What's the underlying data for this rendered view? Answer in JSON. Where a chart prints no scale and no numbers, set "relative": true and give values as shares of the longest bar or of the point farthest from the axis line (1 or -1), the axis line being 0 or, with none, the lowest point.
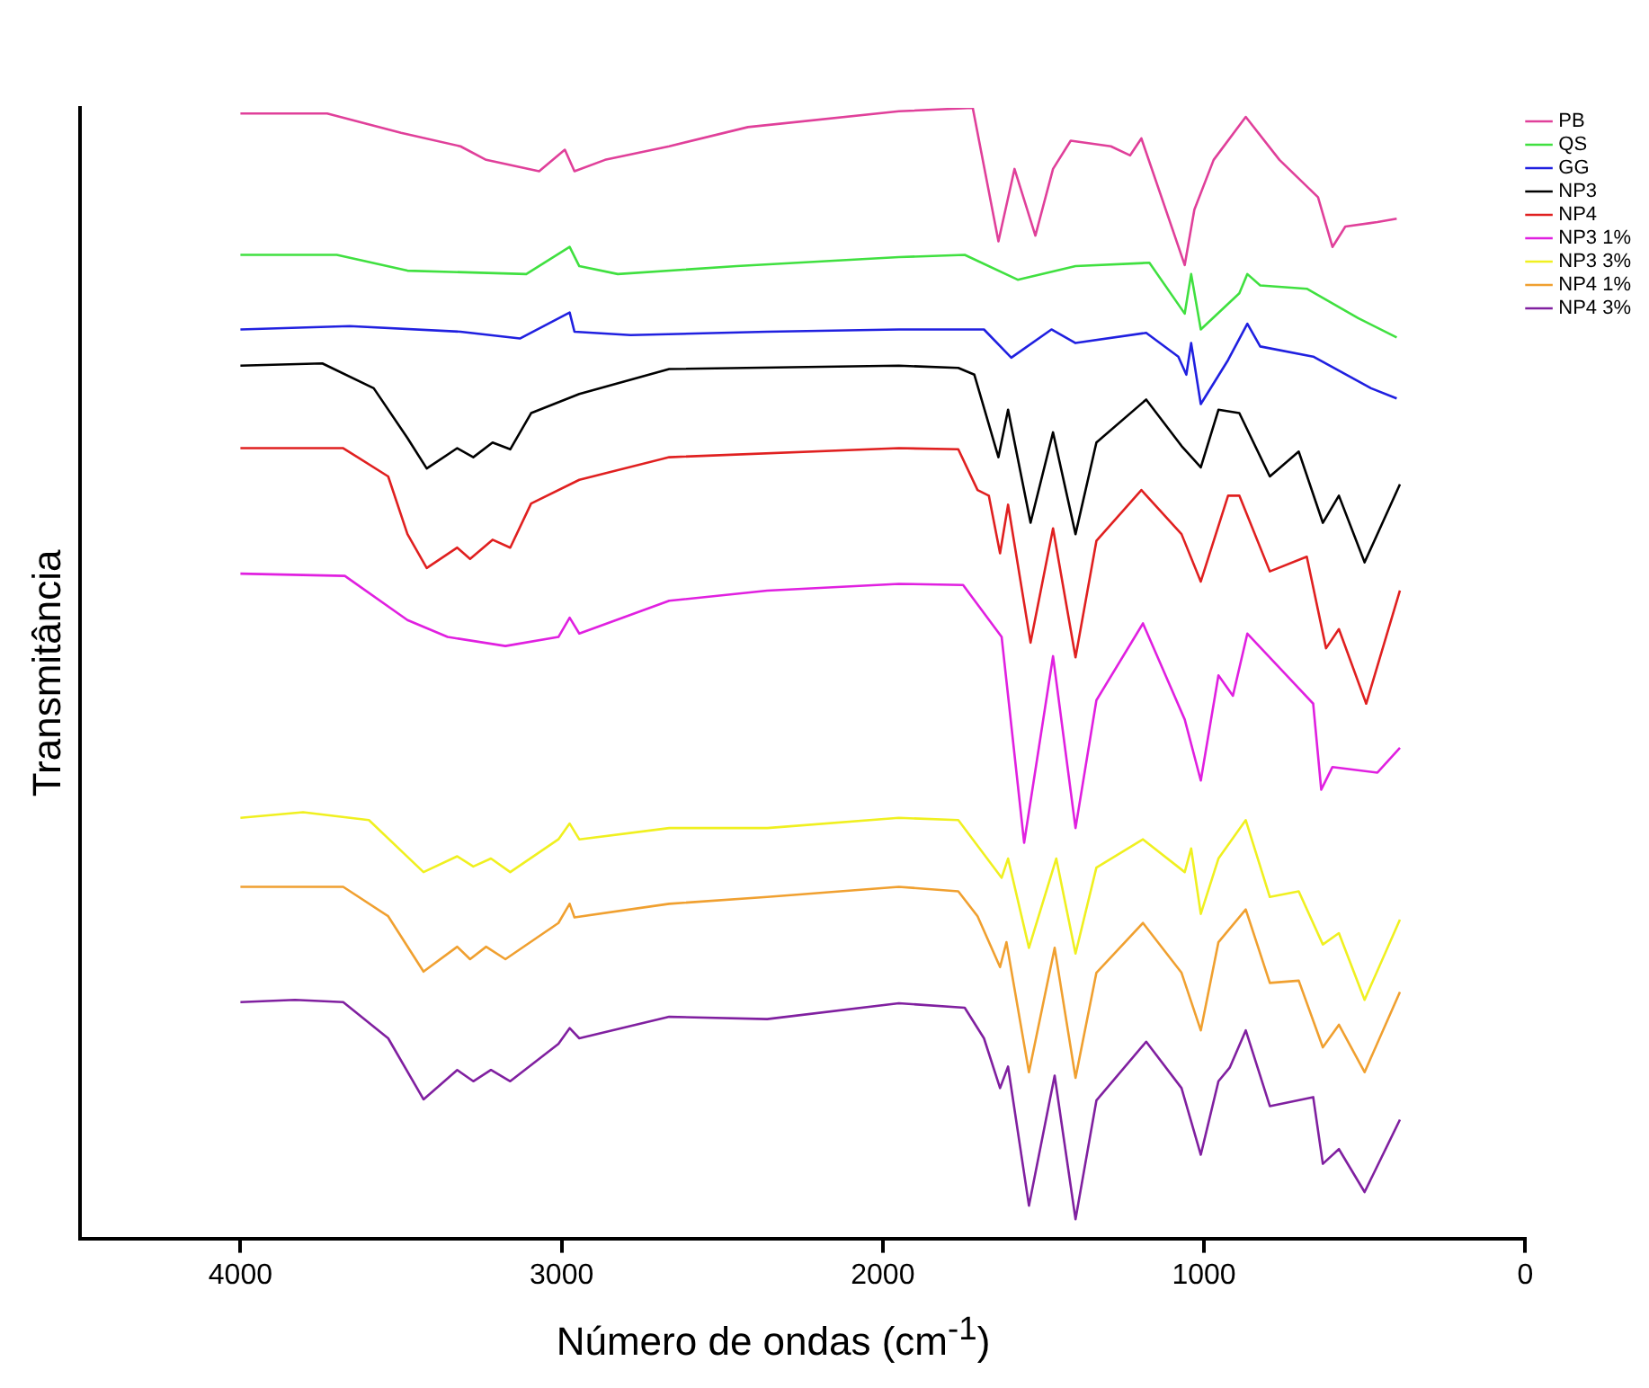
{
  "chart_data": {
    "type": "line",
    "xlabel": "Número de ondas (cm$^{-1}$)",
    "ylabel": "Transmitância",
    "relative": true,
    "xlim": [
      4500,
      0
    ],
    "xticks": [
      4000,
      3000,
      2000,
      1000,
      0
    ],
    "grid": false,
    "legend": "top right",
    "marker": "none",
    "line_style": "solid",
    "series": [
      {
        "name": "PB",
        "color": "#e0409a",
        "x": [
          4000,
          3730,
          3500,
          3315,
          3235,
          3070,
          2990,
          2960,
          2865,
          2665,
          2420,
          1950,
          1720,
          1640,
          1590,
          1525,
          1470,
          1415,
          1290,
          1230,
          1195,
          1060,
          1030,
          970,
          870,
          765,
          645,
          600,
          560,
          460,
          400
        ],
        "values": [
          0.995,
          0.995,
          0.978,
          0.966,
          0.954,
          0.944,
          0.963,
          0.944,
          0.954,
          0.966,
          0.983,
          0.997,
          1.0,
          0.882,
          0.946,
          0.887,
          0.946,
          0.971,
          0.966,
          0.958,
          0.973,
          0.861,
          0.91,
          0.954,
          0.992,
          0.954,
          0.921,
          0.877,
          0.895,
          0.899,
          0.902
        ]
      },
      {
        "name": "QS",
        "color": "#40e040",
        "x": [
          4000,
          3700,
          3480,
          3110,
          2975,
          2945,
          2825,
          2455,
          1950,
          1745,
          1580,
          1400,
          1170,
          1060,
          1040,
          1010,
          890,
          865,
          825,
          680,
          520,
          400
        ],
        "values": [
          0.87,
          0.87,
          0.856,
          0.853,
          0.877,
          0.86,
          0.853,
          0.86,
          0.868,
          0.87,
          0.848,
          0.86,
          0.863,
          0.818,
          0.853,
          0.804,
          0.836,
          0.853,
          0.843,
          0.84,
          0.814,
          0.797
        ]
      },
      {
        "name": "GG",
        "color": "#2020e0",
        "x": [
          4000,
          3660,
          3315,
          3130,
          2975,
          2960,
          2785,
          2360,
          1950,
          1685,
          1600,
          1475,
          1400,
          1180,
          1080,
          1055,
          1040,
          1010,
          925,
          865,
          825,
          660,
          480,
          400
        ],
        "values": [
          0.804,
          0.807,
          0.802,
          0.796,
          0.819,
          0.802,
          0.799,
          0.802,
          0.804,
          0.804,
          0.779,
          0.804,
          0.792,
          0.801,
          0.78,
          0.764,
          0.792,
          0.738,
          0.777,
          0.809,
          0.789,
          0.78,
          0.752,
          0.743
        ]
      },
      {
        "name": "NP3",
        "color": "#000000",
        "x": [
          4000,
          3745,
          3585,
          3480,
          3420,
          3325,
          3275,
          3215,
          3160,
          3095,
          2945,
          2665,
          1950,
          1765,
          1715,
          1640,
          1610,
          1540,
          1470,
          1400,
          1335,
          1180,
          1070,
          1010,
          955,
          890,
          795,
          705,
          630,
          580,
          500,
          390
        ],
        "values": [
          0.772,
          0.774,
          0.752,
          0.708,
          0.681,
          0.699,
          0.691,
          0.704,
          0.698,
          0.73,
          0.747,
          0.769,
          0.772,
          0.77,
          0.764,
          0.691,
          0.733,
          0.633,
          0.713,
          0.623,
          0.704,
          0.742,
          0.701,
          0.682,
          0.733,
          0.73,
          0.674,
          0.696,
          0.633,
          0.657,
          0.598,
          0.667
        ]
      },
      {
        "name": "NP4",
        "color": "#e02020",
        "x": [
          4000,
          3680,
          3540,
          3480,
          3420,
          3325,
          3285,
          3215,
          3160,
          3095,
          2945,
          2665,
          1950,
          1765,
          1705,
          1670,
          1635,
          1610,
          1540,
          1470,
          1400,
          1335,
          1195,
          1070,
          1010,
          925,
          890,
          795,
          680,
          620,
          580,
          495,
          390
        ],
        "values": [
          0.699,
          0.699,
          0.674,
          0.623,
          0.593,
          0.611,
          0.601,
          0.618,
          0.611,
          0.65,
          0.671,
          0.691,
          0.699,
          0.698,
          0.662,
          0.657,
          0.606,
          0.649,
          0.527,
          0.628,
          0.514,
          0.617,
          0.662,
          0.623,
          0.581,
          0.657,
          0.657,
          0.59,
          0.603,
          0.522,
          0.539,
          0.473,
          0.573
        ]
      },
      {
        "name": "NP3 1%",
        "color": "#e020e0",
        "x": [
          4000,
          3675,
          3480,
          3355,
          3175,
          3010,
          2975,
          2945,
          2665,
          2360,
          1950,
          1750,
          1630,
          1560,
          1470,
          1400,
          1335,
          1190,
          1060,
          1010,
          955,
          910,
          865,
          660,
          635,
          600,
          460,
          390
        ],
        "values": [
          0.588,
          0.586,
          0.547,
          0.532,
          0.524,
          0.532,
          0.549,
          0.535,
          0.564,
          0.573,
          0.579,
          0.578,
          0.532,
          0.35,
          0.515,
          0.363,
          0.476,
          0.544,
          0.459,
          0.405,
          0.498,
          0.48,
          0.535,
          0.473,
          0.397,
          0.417,
          0.412,
          0.434
        ]
      },
      {
        "name": "NP3 3%",
        "color": "#f0f020",
        "x": [
          4000,
          3805,
          3600,
          3430,
          3325,
          3275,
          3220,
          3160,
          3010,
          2975,
          2945,
          2665,
          2360,
          1950,
          1765,
          1630,
          1610,
          1545,
          1460,
          1400,
          1335,
          1190,
          1060,
          1040,
          1010,
          955,
          870,
          795,
          705,
          630,
          580,
          500,
          390
        ],
        "values": [
          0.372,
          0.377,
          0.37,
          0.324,
          0.338,
          0.329,
          0.336,
          0.324,
          0.353,
          0.367,
          0.353,
          0.363,
          0.363,
          0.372,
          0.37,
          0.319,
          0.336,
          0.257,
          0.336,
          0.252,
          0.328,
          0.353,
          0.324,
          0.345,
          0.287,
          0.336,
          0.37,
          0.302,
          0.307,
          0.26,
          0.27,
          0.211,
          0.282
        ]
      },
      {
        "name": "NP4 1%",
        "color": "#f0a030",
        "x": [
          4000,
          3680,
          3540,
          3430,
          3325,
          3285,
          3235,
          3175,
          3010,
          2975,
          2960,
          2665,
          2360,
          1950,
          1765,
          1705,
          1635,
          1615,
          1545,
          1465,
          1400,
          1335,
          1190,
          1070,
          1010,
          955,
          870,
          795,
          705,
          630,
          580,
          500,
          390
        ],
        "values": [
          0.311,
          0.311,
          0.285,
          0.236,
          0.258,
          0.247,
          0.258,
          0.247,
          0.279,
          0.296,
          0.284,
          0.296,
          0.302,
          0.311,
          0.307,
          0.285,
          0.24,
          0.262,
          0.147,
          0.257,
          0.142,
          0.235,
          0.279,
          0.235,
          0.184,
          0.262,
          0.291,
          0.226,
          0.228,
          0.169,
          0.189,
          0.147,
          0.218
        ]
      },
      {
        "name": "NP4 3%",
        "color": "#8020a0",
        "x": [
          4000,
          3830,
          3680,
          3540,
          3430,
          3325,
          3275,
          3220,
          3160,
          3010,
          2975,
          2945,
          2665,
          2360,
          1950,
          1745,
          1685,
          1635,
          1610,
          1545,
          1465,
          1400,
          1335,
          1180,
          1070,
          1010,
          955,
          920,
          870,
          795,
          660,
          630,
          580,
          500,
          390
        ],
        "values": [
          0.209,
          0.211,
          0.209,
          0.177,
          0.123,
          0.149,
          0.139,
          0.149,
          0.139,
          0.172,
          0.186,
          0.177,
          0.196,
          0.194,
          0.208,
          0.204,
          0.177,
          0.133,
          0.152,
          0.029,
          0.144,
          0.017,
          0.122,
          0.174,
          0.133,
          0.074,
          0.139,
          0.151,
          0.184,
          0.117,
          0.125,
          0.066,
          0.079,
          0.041,
          0.105
        ]
      }
    ]
  }
}
